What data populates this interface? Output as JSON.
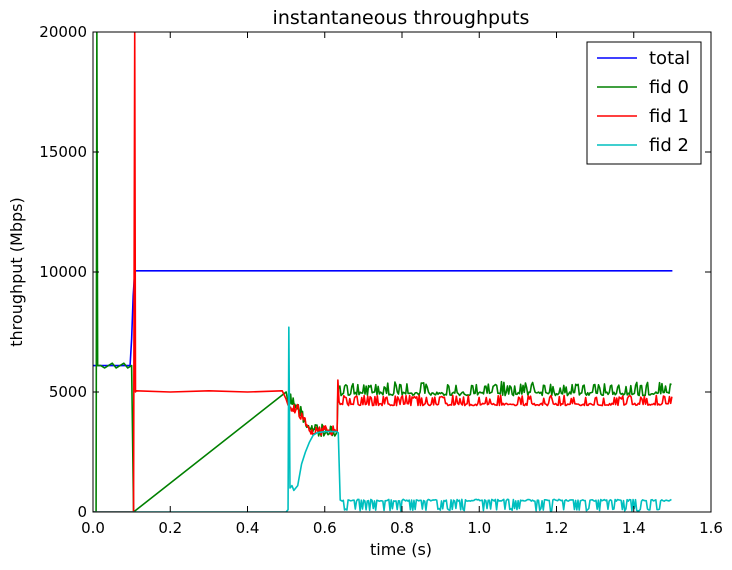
{
  "chart_data": {
    "type": "line",
    "title": "instantaneous throughputs",
    "xlabel": "time (s)",
    "ylabel": "throughput (Mbps)",
    "xlim": [
      0.0,
      1.6
    ],
    "ylim": [
      0,
      20000
    ],
    "x_ticks": [
      "0.0",
      "0.2",
      "0.4",
      "0.6",
      "0.8",
      "1.0",
      "1.2",
      "1.4",
      "1.6"
    ],
    "y_ticks": [
      "0",
      "5000",
      "10000",
      "15000",
      "20000"
    ],
    "grid": false,
    "legend_position": "top-right",
    "series": [
      {
        "name": "total",
        "color": "#0000ff",
        "x": [
          0.0,
          0.096,
          0.1,
          0.104,
          0.108,
          0.11,
          0.12,
          0.2,
          0.3,
          0.4,
          0.5,
          0.6,
          0.7,
          0.8,
          0.9,
          1.0,
          1.1,
          1.2,
          1.3,
          1.4,
          1.5
        ],
        "y": [
          6100,
          6100,
          7200,
          9000,
          10000,
          10050,
          10050,
          10050,
          10050,
          10050,
          10050,
          10050,
          10050,
          10050,
          10050,
          10050,
          10050,
          10050,
          10050,
          10050,
          10050
        ]
      },
      {
        "name": "fid 0",
        "color": "#008000",
        "x": [
          0.0,
          0.008,
          0.01,
          0.012,
          0.02,
          0.03,
          0.04,
          0.05,
          0.06,
          0.07,
          0.08,
          0.09,
          0.1,
          0.105
        ],
        "y": [
          0,
          0,
          20000,
          6100,
          6100,
          6000,
          6100,
          6200,
          6000,
          6100,
          6200,
          6000,
          6100,
          0
        ]
      },
      {
        "name": "fid 1",
        "color": "#ff0000",
        "x": [
          0.0,
          0.105,
          0.106,
          0.108,
          0.11,
          0.112,
          0.2,
          0.3,
          0.4,
          0.49,
          0.5
        ],
        "y": [
          0,
          0,
          7000,
          20000,
          5000,
          5050,
          5000,
          5050,
          5000,
          5050,
          4700
        ]
      },
      {
        "name": "fid 2",
        "color": "#00bfbf",
        "x": [
          0.0,
          0.1,
          0.2,
          0.3,
          0.4,
          0.5,
          0.505,
          0.507,
          0.51,
          0.515,
          0.52,
          0.53,
          0.54,
          0.55,
          0.56,
          0.57,
          0.58,
          0.6,
          0.62,
          0.63,
          0.635,
          0.64
        ],
        "y": [
          0,
          0,
          0,
          0,
          0,
          0,
          100,
          7700,
          1000,
          1100,
          900,
          1100,
          2000,
          2500,
          2900,
          3200,
          3300,
          3350,
          3350,
          3350,
          3300,
          500
        ]
      }
    ]
  }
}
